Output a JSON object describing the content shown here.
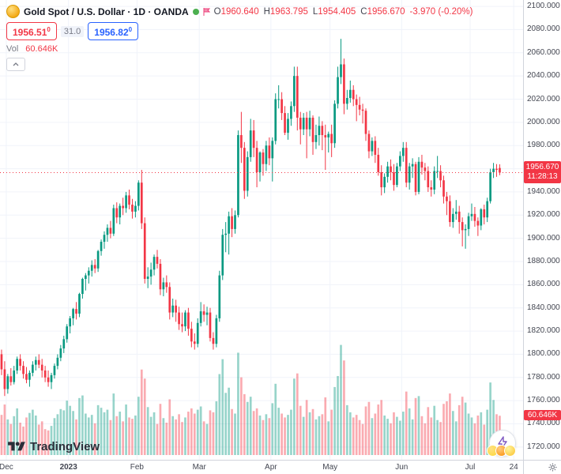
{
  "header": {
    "symbol_title": "Gold Spot / U.S. Dollar · 1D · OANDA",
    "ohlc": {
      "o_label": "O",
      "o": "1960.640",
      "h_label": "H",
      "h": "1963.795",
      "l_label": "L",
      "l": "1954.405",
      "c_label": "C",
      "c": "1956.670",
      "change": "-3.970 (-0.20%)"
    },
    "sell_price": "1956.51",
    "sell_sup": "0",
    "spread": "31.0",
    "buy_price": "1956.82",
    "buy_sup": "0",
    "vol_label": "Vol",
    "vol_value": "60.646K"
  },
  "price_label": {
    "price": "1956.670",
    "countdown": "11:28:13"
  },
  "volume_label": "60.646K",
  "logo_text": "TradingView",
  "colors": {
    "up": "#089981",
    "down": "#F23645",
    "accent_blue": "#2962FF"
  },
  "chart_data": {
    "type": "candlestick",
    "title": "Gold Spot / U.S. Dollar",
    "timeframe": "1D",
    "exchange": "OANDA",
    "last_price": 1956.67,
    "legend_open": 1960.64,
    "legend_high": 1963.795,
    "legend_low": 1954.405,
    "legend_close": 1956.67,
    "change": -3.97,
    "change_pct": -0.2,
    "volume_last_k": 60.646,
    "y_axis": {
      "min": 1709,
      "max": 2105.5,
      "tick_step": 20,
      "ticks": [
        2100,
        2080,
        2060,
        2040,
        2020,
        2000,
        1980,
        1960,
        1940,
        1920,
        1900,
        1880,
        1860,
        1840,
        1820,
        1800,
        1780,
        1760,
        1740,
        1720
      ]
    },
    "x_axis": {
      "total_slots": 168,
      "ticks": [
        {
          "label": "Dec",
          "bar": 2
        },
        {
          "label": "2023",
          "bar": 22,
          "bold": true
        },
        {
          "label": "Feb",
          "bar": 44
        },
        {
          "label": "Mar",
          "bar": 64
        },
        {
          "label": "Apr",
          "bar": 87
        },
        {
          "label": "May",
          "bar": 106
        },
        {
          "label": "Jun",
          "bar": 129
        },
        {
          "label": "Jul",
          "bar": 151
        },
        {
          "label": "24",
          "bar": 165
        }
      ]
    },
    "volume_scale": 0.82,
    "candles": [
      [
        1800,
        1804,
        1782,
        1787,
        62
      ],
      [
        1787,
        1794,
        1764,
        1770,
        78
      ],
      [
        1770,
        1783,
        1766,
        1781,
        55
      ],
      [
        1781,
        1788,
        1773,
        1776,
        48
      ],
      [
        1776,
        1790,
        1774,
        1786,
        60
      ],
      [
        1786,
        1798,
        1783,
        1796,
        72
      ],
      [
        1796,
        1800,
        1786,
        1790,
        50
      ],
      [
        1790,
        1794,
        1779,
        1783,
        44
      ],
      [
        1783,
        1789,
        1775,
        1778,
        58
      ],
      [
        1778,
        1786,
        1772,
        1784,
        65
      ],
      [
        1784,
        1794,
        1781,
        1791,
        70
      ],
      [
        1791,
        1798,
        1786,
        1795,
        61
      ],
      [
        1795,
        1800,
        1788,
        1791,
        47
      ],
      [
        1791,
        1796,
        1780,
        1786,
        52
      ],
      [
        1786,
        1790,
        1776,
        1780,
        40
      ],
      [
        1780,
        1786,
        1772,
        1776,
        38
      ],
      [
        1776,
        1784,
        1770,
        1782,
        45
      ],
      [
        1782,
        1792,
        1779,
        1790,
        57
      ],
      [
        1790,
        1800,
        1787,
        1797,
        63
      ],
      [
        1797,
        1808,
        1794,
        1805,
        71
      ],
      [
        1805,
        1816,
        1801,
        1813,
        69
      ],
      [
        1813,
        1826,
        1810,
        1824,
        84
      ],
      [
        1824,
        1833,
        1818,
        1831,
        76
      ],
      [
        1831,
        1840,
        1825,
        1839,
        68
      ],
      [
        1839,
        1845,
        1830,
        1835,
        55
      ],
      [
        1835,
        1853,
        1832,
        1852,
        88
      ],
      [
        1852,
        1866,
        1848,
        1865,
        92
      ],
      [
        1865,
        1870,
        1855,
        1868,
        64
      ],
      [
        1868,
        1875,
        1861,
        1872,
        58
      ],
      [
        1872,
        1881,
        1867,
        1877,
        62
      ],
      [
        1877,
        1882,
        1870,
        1874,
        49
      ],
      [
        1874,
        1890,
        1871,
        1889,
        77
      ],
      [
        1889,
        1899,
        1885,
        1897,
        73
      ],
      [
        1897,
        1906,
        1891,
        1903,
        66
      ],
      [
        1903,
        1912,
        1897,
        1909,
        70
      ],
      [
        1909,
        1915,
        1900,
        1904,
        54
      ],
      [
        1904,
        1929,
        1902,
        1926,
        95
      ],
      [
        1926,
        1931,
        1913,
        1918,
        60
      ],
      [
        1918,
        1930,
        1912,
        1928,
        67
      ],
      [
        1928,
        1935,
        1920,
        1926,
        52
      ],
      [
        1926,
        1940,
        1922,
        1937,
        78
      ],
      [
        1937,
        1942,
        1925,
        1929,
        58
      ],
      [
        1929,
        1934,
        1917,
        1923,
        56
      ],
      [
        1923,
        1932,
        1918,
        1928,
        61
      ],
      [
        1928,
        1950,
        1924,
        1948,
        90
      ],
      [
        1948,
        1959,
        1908,
        1913,
        132
      ],
      [
        1913,
        1918,
        1861,
        1865,
        118
      ],
      [
        1865,
        1875,
        1857,
        1867,
        74
      ],
      [
        1867,
        1879,
        1860,
        1873,
        59
      ],
      [
        1873,
        1886,
        1868,
        1884,
        66
      ],
      [
        1884,
        1890,
        1874,
        1878,
        48
      ],
      [
        1878,
        1882,
        1851,
        1856,
        79
      ],
      [
        1856,
        1866,
        1850,
        1862,
        57
      ],
      [
        1862,
        1868,
        1853,
        1858,
        50
      ],
      [
        1858,
        1862,
        1830,
        1836,
        86
      ],
      [
        1836,
        1848,
        1832,
        1842,
        60
      ],
      [
        1842,
        1847,
        1828,
        1836,
        55
      ],
      [
        1836,
        1841,
        1821,
        1826,
        63
      ],
      [
        1826,
        1836,
        1819,
        1824,
        51
      ],
      [
        1824,
        1838,
        1820,
        1836,
        58
      ],
      [
        1836,
        1840,
        1816,
        1822,
        67
      ],
      [
        1822,
        1828,
        1806,
        1811,
        72
      ],
      [
        1811,
        1818,
        1804,
        1809,
        64
      ],
      [
        1809,
        1831,
        1806,
        1827,
        70
      ],
      [
        1827,
        1845,
        1824,
        1837,
        75
      ],
      [
        1837,
        1843,
        1828,
        1834,
        52
      ],
      [
        1834,
        1841,
        1825,
        1836,
        48
      ],
      [
        1836,
        1840,
        1811,
        1814,
        69
      ],
      [
        1814,
        1819,
        1804,
        1809,
        66
      ],
      [
        1809,
        1834,
        1806,
        1831,
        83
      ],
      [
        1831,
        1872,
        1828,
        1868,
        125
      ],
      [
        1868,
        1908,
        1864,
        1903,
        148
      ],
      [
        1903,
        1914,
        1888,
        1904,
        96
      ],
      [
        1904,
        1923,
        1886,
        1919,
        104
      ],
      [
        1919,
        1926,
        1901,
        1908,
        71
      ],
      [
        1908,
        1924,
        1904,
        1920,
        64
      ],
      [
        1920,
        1993,
        1918,
        1989,
        158
      ],
      [
        1989,
        2009,
        1965,
        1978,
        120
      ],
      [
        1978,
        1983,
        1934,
        1941,
        94
      ],
      [
        1941,
        1975,
        1936,
        1970,
        82
      ],
      [
        1970,
        2003,
        1966,
        1993,
        90
      ],
      [
        1993,
        2002,
        1970,
        1978,
        68
      ],
      [
        1978,
        1984,
        1944,
        1957,
        72
      ],
      [
        1957,
        1975,
        1949,
        1974,
        61
      ],
      [
        1974,
        1977,
        1954,
        1964,
        54
      ],
      [
        1964,
        1984,
        1958,
        1980,
        63
      ],
      [
        1980,
        1987,
        1963,
        1969,
        57
      ],
      [
        1969,
        1987,
        1949,
        1984,
        80
      ],
      [
        1984,
        2025,
        1981,
        2020,
        110
      ],
      [
        2020,
        2032,
        2012,
        2020,
        73
      ],
      [
        2020,
        2026,
        2002,
        2008,
        64
      ],
      [
        2008,
        2014,
        1989,
        1991,
        58
      ],
      [
        1991,
        2008,
        1985,
        2003,
        62
      ],
      [
        2003,
        2018,
        1997,
        2014,
        70
      ],
      [
        2014,
        2048,
        2009,
        2040,
        118
      ],
      [
        2040,
        2048,
        1993,
        2004,
        126
      ],
      [
        2004,
        2009,
        1981,
        1994,
        76
      ],
      [
        1994,
        2008,
        1989,
        2004,
        59
      ],
      [
        2004,
        2009,
        1969,
        1994,
        85
      ],
      [
        1994,
        2010,
        1988,
        2004,
        66
      ],
      [
        2004,
        2006,
        1972,
        1983,
        71
      ],
      [
        1983,
        1998,
        1977,
        1989,
        55
      ],
      [
        1989,
        2005,
        1980,
        1997,
        60
      ],
      [
        1997,
        2001,
        1976,
        1989,
        63
      ],
      [
        1989,
        1998,
        1959,
        1987,
        89
      ],
      [
        1987,
        1992,
        1974,
        1990,
        52
      ],
      [
        1990,
        1998,
        1970,
        1982,
        70
      ],
      [
        1982,
        2019,
        1978,
        2016,
        105
      ],
      [
        2016,
        2048,
        2012,
        2039,
        122
      ],
      [
        2039,
        2072,
        2033,
        2050,
        170
      ],
      [
        2050,
        2055,
        2007,
        2016,
        146
      ],
      [
        2016,
        2028,
        2011,
        2021,
        77
      ],
      [
        2021,
        2036,
        2017,
        2028,
        66
      ],
      [
        2028,
        2032,
        2014,
        2020,
        58
      ],
      [
        2020,
        2024,
        2001,
        2015,
        62
      ],
      [
        2015,
        2022,
        2006,
        2011,
        54
      ],
      [
        2011,
        2016,
        1999,
        2010,
        48
      ],
      [
        2010,
        2012,
        1984,
        1990,
        75
      ],
      [
        1990,
        1993,
        1969,
        1975,
        82
      ],
      [
        1975,
        1987,
        1971,
        1984,
        57
      ],
      [
        1984,
        1988,
        1965,
        1972,
        64
      ],
      [
        1972,
        1978,
        1954,
        1957,
        78
      ],
      [
        1957,
        1963,
        1937,
        1944,
        85
      ],
      [
        1944,
        1956,
        1939,
        1953,
        61
      ],
      [
        1953,
        1966,
        1948,
        1962,
        56
      ],
      [
        1962,
        1968,
        1950,
        1957,
        49
      ],
      [
        1957,
        1964,
        1941,
        1946,
        66
      ],
      [
        1946,
        1965,
        1944,
        1962,
        59
      ],
      [
        1962,
        1975,
        1958,
        1971,
        53
      ],
      [
        1971,
        1983,
        1966,
        1978,
        67
      ],
      [
        1978,
        1983,
        1944,
        1948,
        98
      ],
      [
        1948,
        1965,
        1942,
        1962,
        72
      ],
      [
        1962,
        1969,
        1952,
        1964,
        55
      ],
      [
        1964,
        1966,
        1937,
        1940,
        88
      ],
      [
        1940,
        1970,
        1938,
        1966,
        91
      ],
      [
        1966,
        1972,
        1955,
        1961,
        60
      ],
      [
        1961,
        1965,
        1950,
        1958,
        49
      ],
      [
        1958,
        1962,
        1940,
        1944,
        74
      ],
      [
        1944,
        1950,
        1936,
        1942,
        58
      ],
      [
        1942,
        1962,
        1938,
        1958,
        76
      ],
      [
        1958,
        1971,
        1952,
        1958,
        54
      ],
      [
        1958,
        1963,
        1944,
        1950,
        51
      ],
      [
        1950,
        1954,
        1930,
        1936,
        79
      ],
      [
        1936,
        1940,
        1920,
        1932,
        83
      ],
      [
        1932,
        1937,
        1910,
        1914,
        95
      ],
      [
        1914,
        1926,
        1909,
        1921,
        68
      ],
      [
        1921,
        1933,
        1916,
        1923,
        52
      ],
      [
        1923,
        1928,
        1904,
        1914,
        77
      ],
      [
        1914,
        1918,
        1893,
        1907,
        90
      ],
      [
        1907,
        1912,
        1891,
        1908,
        81
      ],
      [
        1908,
        1922,
        1902,
        1919,
        64
      ],
      [
        1919,
        1930,
        1915,
        1921,
        58
      ],
      [
        1921,
        1927,
        1910,
        1915,
        49
      ],
      [
        1915,
        1918,
        1902,
        1911,
        61
      ],
      [
        1911,
        1926,
        1907,
        1925,
        66
      ],
      [
        1925,
        1929,
        1912,
        1918,
        47
      ],
      [
        1918,
        1935,
        1914,
        1932,
        70
      ],
      [
        1932,
        1960,
        1930,
        1957,
        112
      ],
      [
        1957,
        1965,
        1952,
        1960,
        85
      ],
      [
        1960,
        1964,
        1953,
        1959,
        63
      ],
      [
        1960.64,
        1963.795,
        1954.405,
        1956.67,
        60.646
      ]
    ]
  }
}
